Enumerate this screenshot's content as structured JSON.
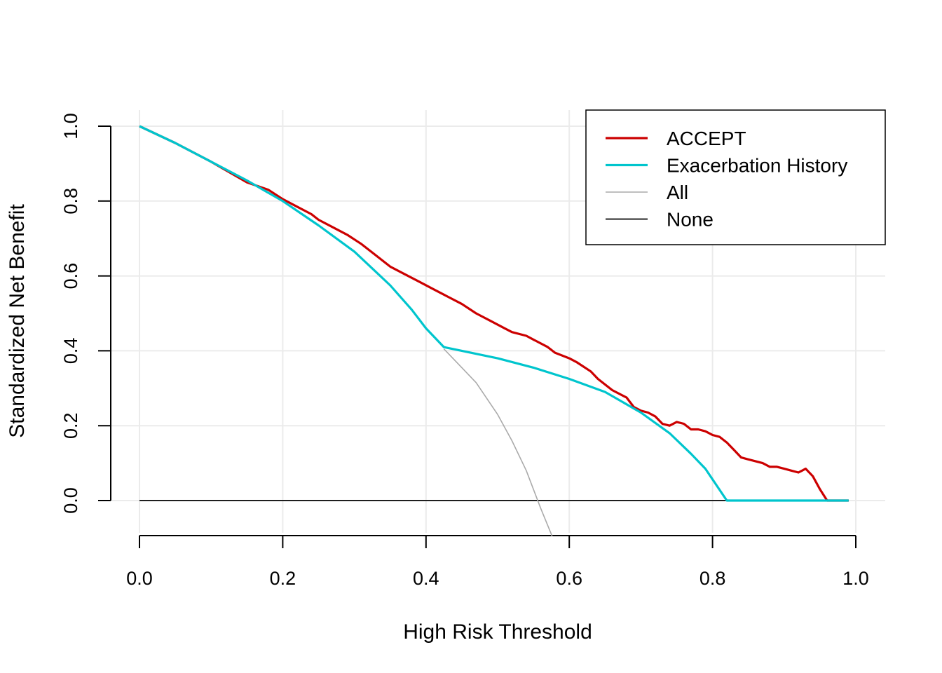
{
  "chart_data": {
    "type": "line",
    "title": "",
    "xlabel": "High Risk Threshold",
    "ylabel": "Standardized Net Benefit",
    "xlim": [
      0.0,
      1.0
    ],
    "ylim": [
      -0.08,
      1.0
    ],
    "x_ticks": [
      0.0,
      0.2,
      0.4,
      0.6,
      0.8,
      1.0
    ],
    "y_ticks": [
      0.0,
      0.2,
      0.4,
      0.6,
      0.8,
      1.0
    ],
    "x_tick_labels": [
      "0.0",
      "0.2",
      "0.4",
      "0.6",
      "0.8",
      "1.0"
    ],
    "y_tick_labels": [
      "0.0",
      "0.2",
      "0.4",
      "0.6",
      "0.8",
      "1.0"
    ],
    "grid": true,
    "legend_position": "top-right",
    "series": [
      {
        "name": "ACCEPT",
        "color": "#cc0000",
        "x": [
          0.0,
          0.05,
          0.1,
          0.15,
          0.18,
          0.2,
          0.22,
          0.24,
          0.25,
          0.27,
          0.29,
          0.31,
          0.33,
          0.35,
          0.37,
          0.39,
          0.41,
          0.43,
          0.45,
          0.47,
          0.49,
          0.51,
          0.52,
          0.54,
          0.55,
          0.57,
          0.58,
          0.6,
          0.61,
          0.63,
          0.64,
          0.66,
          0.68,
          0.69,
          0.7,
          0.71,
          0.72,
          0.73,
          0.74,
          0.75,
          0.76,
          0.77,
          0.78,
          0.79,
          0.8,
          0.81,
          0.82,
          0.83,
          0.84,
          0.85,
          0.86,
          0.87,
          0.88,
          0.89,
          0.9,
          0.91,
          0.92,
          0.93,
          0.94,
          0.95,
          0.96,
          0.99
        ],
        "y": [
          1.0,
          0.955,
          0.905,
          0.85,
          0.83,
          0.805,
          0.785,
          0.765,
          0.75,
          0.73,
          0.71,
          0.685,
          0.655,
          0.625,
          0.605,
          0.585,
          0.565,
          0.545,
          0.525,
          0.5,
          0.48,
          0.46,
          0.45,
          0.44,
          0.43,
          0.41,
          0.395,
          0.38,
          0.37,
          0.345,
          0.325,
          0.295,
          0.275,
          0.25,
          0.24,
          0.235,
          0.225,
          0.205,
          0.2,
          0.21,
          0.205,
          0.19,
          0.19,
          0.185,
          0.175,
          0.17,
          0.155,
          0.135,
          0.115,
          0.11,
          0.105,
          0.1,
          0.09,
          0.09,
          0.085,
          0.08,
          0.075,
          0.085,
          0.065,
          0.03,
          0.0,
          0.0
        ]
      },
      {
        "name": "Exacerbation History",
        "color": "#00c5cd",
        "x": [
          0.0,
          0.05,
          0.1,
          0.15,
          0.2,
          0.25,
          0.3,
          0.35,
          0.38,
          0.4,
          0.425,
          0.45,
          0.5,
          0.55,
          0.6,
          0.65,
          0.7,
          0.74,
          0.77,
          0.79,
          0.82,
          0.99
        ],
        "y": [
          1.0,
          0.955,
          0.905,
          0.855,
          0.8,
          0.735,
          0.665,
          0.575,
          0.51,
          0.46,
          0.41,
          0.4,
          0.38,
          0.355,
          0.325,
          0.29,
          0.235,
          0.18,
          0.125,
          0.085,
          0.0,
          0.0
        ]
      },
      {
        "name": "All",
        "color": "#aaaaaa",
        "x": [
          0.425,
          0.45,
          0.47,
          0.5,
          0.52,
          0.54,
          0.56,
          0.576
        ],
        "y": [
          0.405,
          0.355,
          0.315,
          0.23,
          0.16,
          0.08,
          -0.02,
          -0.095
        ]
      },
      {
        "name": "None",
        "color": "#000000",
        "x": [
          0.0,
          0.99
        ],
        "y": [
          0.0,
          0.0
        ]
      }
    ]
  }
}
